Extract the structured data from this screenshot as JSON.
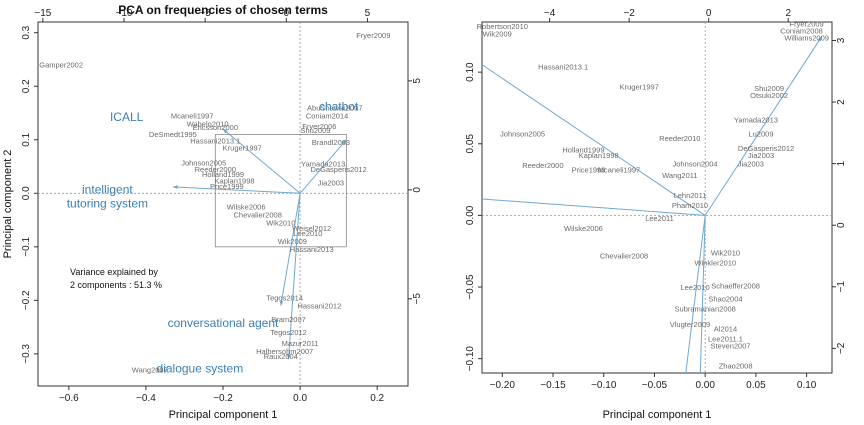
{
  "chart_data": [
    {
      "type": "scatter",
      "subtype": "biplot",
      "title": "PCA on frequencies of chosen terms",
      "xlabel": "Principal component 1",
      "ylabel": "Principal component 2",
      "xlim": [
        -0.68,
        0.28
      ],
      "ylim": [
        -0.36,
        0.32
      ],
      "xticks": [
        -0.6,
        -0.4,
        -0.2,
        0.0,
        0.2
      ],
      "xtick_labels": [
        "−0.6",
        "−0.4",
        "−0.2",
        "0.0",
        "0.2"
      ],
      "yticks": [
        -0.3,
        -0.2,
        -0.1,
        0.0,
        0.1,
        0.2,
        0.3
      ],
      "ytick_labels": [
        "−0.3",
        "−0.2",
        "−0.1",
        "0.0",
        "0.1",
        "0.2",
        "0.3"
      ],
      "secondary_x": {
        "lim": [
          -15.3,
          7.5
        ],
        "ticks": [
          -15,
          -10,
          -5,
          0,
          5
        ],
        "labels": [
          "−15",
          "−10",
          "−5",
          "0",
          "5"
        ]
      },
      "secondary_y": {
        "lim": [
          -9.0,
          7.7
        ],
        "ticks": [
          -5,
          0,
          5
        ],
        "labels": [
          "−5",
          "0",
          "5"
        ]
      },
      "reference_lines": {
        "x": 0,
        "y": 0
      },
      "zoom_box": {
        "x": [
          -0.22,
          0.12
        ],
        "y": [
          -0.1,
          0.11
        ]
      },
      "annotation": {
        "lines": [
          "Variance explained by",
          "2 components : 51.3 %"
        ]
      },
      "loadings": [
        {
          "name": "ICALL",
          "x": -0.2,
          "y": 0.12,
          "label_x": -0.45,
          "label_y": 0.135
        },
        {
          "name": "chatbot",
          "x": 0.12,
          "y": 0.1,
          "label_x": 0.1,
          "label_y": 0.155
        },
        {
          "name": "intelligent tutoring system",
          "label_lines": [
            "intelligent",
            "tutoring system"
          ],
          "x": -0.33,
          "y": 0.012,
          "label_x": -0.5,
          "label_y": 0.0
        },
        {
          "name": "conversational agent",
          "x": -0.05,
          "y": -0.21,
          "label_x": -0.2,
          "label_y": -0.25
        },
        {
          "name": "dialogue system",
          "x": -0.03,
          "y": -0.31,
          "label_x": -0.26,
          "label_y": -0.335
        }
      ],
      "points": [
        {
          "label": "Fryer2009",
          "x": 0.19,
          "y": 0.29
        },
        {
          "label": "Gamper2002",
          "x": -0.62,
          "y": 0.235
        },
        {
          "label": "Wang2007",
          "x": -0.39,
          "y": -0.335
        },
        {
          "label": "Mcaneli1997",
          "x": -0.28,
          "y": 0.14
        },
        {
          "label": "Wabelo2010",
          "x": -0.24,
          "y": 0.125
        },
        {
          "label": "Ericsson2000",
          "x": -0.22,
          "y": 0.118
        },
        {
          "label": "DeSmedt1995",
          "x": -0.33,
          "y": 0.105
        },
        {
          "label": "Hassani2013.1",
          "x": -0.22,
          "y": 0.093
        },
        {
          "label": "Kruger1997",
          "x": -0.15,
          "y": 0.08
        },
        {
          "label": "Johnson2005",
          "x": -0.25,
          "y": 0.052
        },
        {
          "label": "Reeder2000",
          "x": -0.22,
          "y": 0.04
        },
        {
          "label": "Holland1999",
          "x": -0.2,
          "y": 0.03
        },
        {
          "label": "Kaplan1998",
          "x": -0.17,
          "y": 0.018
        },
        {
          "label": "Price1999",
          "x": -0.19,
          "y": 0.008
        },
        {
          "label": "AbuShawar2007",
          "x": 0.09,
          "y": 0.155
        },
        {
          "label": "Coniam2014",
          "x": 0.07,
          "y": 0.14
        },
        {
          "label": "Fryer2006",
          "x": 0.05,
          "y": 0.12
        },
        {
          "label": "Shu2009",
          "x": 0.04,
          "y": 0.113
        },
        {
          "label": "Brandl2003",
          "x": 0.08,
          "y": 0.09
        },
        {
          "label": "Yamada2013",
          "x": 0.06,
          "y": 0.05
        },
        {
          "label": "DeGasperis2012",
          "x": 0.1,
          "y": 0.04
        },
        {
          "label": "Jia2003",
          "x": 0.08,
          "y": 0.015
        },
        {
          "label": "Wilske2006",
          "x": -0.14,
          "y": -0.03
        },
        {
          "label": "Chevalier2008",
          "x": -0.11,
          "y": -0.045
        },
        {
          "label": "Wik2010",
          "x": -0.05,
          "y": -0.06
        },
        {
          "label": "Weisel2012",
          "x": 0.03,
          "y": -0.07
        },
        {
          "label": "Lee2010",
          "x": 0.02,
          "y": -0.08
        },
        {
          "label": "Wik2009",
          "x": -0.02,
          "y": -0.095
        },
        {
          "label": "Hassani2013",
          "x": 0.03,
          "y": -0.11
        },
        {
          "label": "Tegos2014",
          "x": -0.04,
          "y": -0.2
        },
        {
          "label": "Hassani2012",
          "x": 0.05,
          "y": -0.215
        },
        {
          "label": "Bram2007",
          "x": -0.03,
          "y": -0.24
        },
        {
          "label": "Tegos2012",
          "x": -0.03,
          "y": -0.265
        },
        {
          "label": "Mazur2011",
          "x": 0.0,
          "y": -0.285
        },
        {
          "label": "Halbersohm2007",
          "x": -0.04,
          "y": -0.3
        },
        {
          "label": "Raux2004",
          "x": -0.05,
          "y": -0.31
        }
      ]
    },
    {
      "type": "scatter",
      "subtype": "biplot-zoom",
      "xlabel": "Principal component 1",
      "ylabel": "",
      "xlim": [
        -0.22,
        0.125
      ],
      "ylim": [
        -0.11,
        0.135
      ],
      "xticks": [
        -0.2,
        -0.15,
        -0.1,
        -0.05,
        0.0,
        0.05,
        0.1
      ],
      "xtick_labels": [
        "−0.20",
        "−0.15",
        "−0.10",
        "−0.05",
        "0.00",
        "0.05",
        "0.10"
      ],
      "yticks": [
        -0.1,
        -0.05,
        0.0,
        0.05,
        0.1
      ],
      "ytick_labels": [
        "−0.10",
        "−0.05",
        "0.00",
        "0.05",
        "0.10"
      ],
      "secondary_x": {
        "lim": [
          -5.7,
          3.1
        ],
        "ticks": [
          -4,
          -2,
          0,
          2
        ],
        "labels": [
          "−4",
          "−2",
          "0",
          "2"
        ]
      },
      "secondary_y": {
        "lim": [
          -2.4,
          3.3
        ],
        "ticks": [
          -2,
          -1,
          0,
          1,
          2,
          3
        ],
        "labels": [
          "−2",
          "−1",
          "0",
          "1",
          "2",
          "3"
        ]
      },
      "reference_lines": {
        "x": 0,
        "y": 0
      },
      "loadings": [
        {
          "name": "ICALL",
          "x": -0.23,
          "y": 0.11
        },
        {
          "name": "chatbot",
          "x": 0.115,
          "y": 0.125
        },
        {
          "name": "intelligent tutoring system",
          "x": -0.23,
          "y": 0.012
        },
        {
          "name": "conversational agent",
          "x": -0.02,
          "y": -0.115
        },
        {
          "name": "dialogue system",
          "x": -0.005,
          "y": -0.115
        }
      ],
      "points": [
        {
          "label": "Robertson2010",
          "x": -0.2,
          "y": 0.13
        },
        {
          "label": "Wik2009",
          "x": -0.205,
          "y": 0.125
        },
        {
          "label": "Hassani2013.1",
          "x": -0.14,
          "y": 0.102
        },
        {
          "label": "Kruger1997",
          "x": -0.065,
          "y": 0.088
        },
        {
          "label": "Johnson2005",
          "x": -0.18,
          "y": 0.055
        },
        {
          "label": "Reeder2010",
          "x": -0.025,
          "y": 0.052
        },
        {
          "label": "Holland1999",
          "x": -0.12,
          "y": 0.044
        },
        {
          "label": "Kaplan1998",
          "x": -0.105,
          "y": 0.04
        },
        {
          "label": "Reeder2000",
          "x": -0.16,
          "y": 0.033
        },
        {
          "label": "Price1999",
          "x": -0.115,
          "y": 0.03
        },
        {
          "label": "Mcaneli1997",
          "x": -0.085,
          "y": 0.03
        },
        {
          "label": "Wang2011",
          "x": -0.025,
          "y": 0.026
        },
        {
          "label": "Johnson2004",
          "x": -0.01,
          "y": 0.034
        },
        {
          "label": "Fryer2009",
          "x": 0.1,
          "y": 0.132
        },
        {
          "label": "Coniam2008",
          "x": 0.095,
          "y": 0.127
        },
        {
          "label": "Williams2009",
          "x": 0.1,
          "y": 0.122
        },
        {
          "label": "Shu2009",
          "x": 0.063,
          "y": 0.087
        },
        {
          "label": "Otsuki2002",
          "x": 0.063,
          "y": 0.082
        },
        {
          "label": "Yamada2013",
          "x": 0.05,
          "y": 0.065
        },
        {
          "label": "Lu2009",
          "x": 0.055,
          "y": 0.055
        },
        {
          "label": "DeGasperis2012",
          "x": 0.06,
          "y": 0.045
        },
        {
          "label": "Jia2003",
          "x": 0.055,
          "y": 0.04
        },
        {
          "label": "Jia2003",
          "x": 0.045,
          "y": 0.034
        },
        {
          "label": "Lehn2011",
          "x": -0.015,
          "y": 0.012
        },
        {
          "label": "Pham2010",
          "x": -0.015,
          "y": 0.005
        },
        {
          "label": "Lee2011",
          "x": -0.045,
          "y": -0.004
        },
        {
          "label": "Wilske2006",
          "x": -0.12,
          "y": -0.011
        },
        {
          "label": "Chevalier2008",
          "x": -0.08,
          "y": -0.03
        },
        {
          "label": "Wik2010",
          "x": 0.02,
          "y": -0.028
        },
        {
          "label": "Winkler2010",
          "x": 0.01,
          "y": -0.035
        },
        {
          "label": "Lee2010",
          "x": -0.01,
          "y": -0.052
        },
        {
          "label": "Schaeffer2008",
          "x": 0.03,
          "y": -0.051
        },
        {
          "label": "Shao2004",
          "x": 0.02,
          "y": -0.06
        },
        {
          "label": "Subramanian2008",
          "x": 0.0,
          "y": -0.067
        },
        {
          "label": "Vlugter2009",
          "x": -0.015,
          "y": -0.078
        },
        {
          "label": "Al2014",
          "x": 0.02,
          "y": -0.081
        },
        {
          "label": "Lee2011.1",
          "x": 0.02,
          "y": -0.088
        },
        {
          "label": "Steven2007",
          "x": 0.025,
          "y": -0.093
        },
        {
          "label": "Zhao2008",
          "x": 0.03,
          "y": -0.107
        }
      ]
    }
  ]
}
